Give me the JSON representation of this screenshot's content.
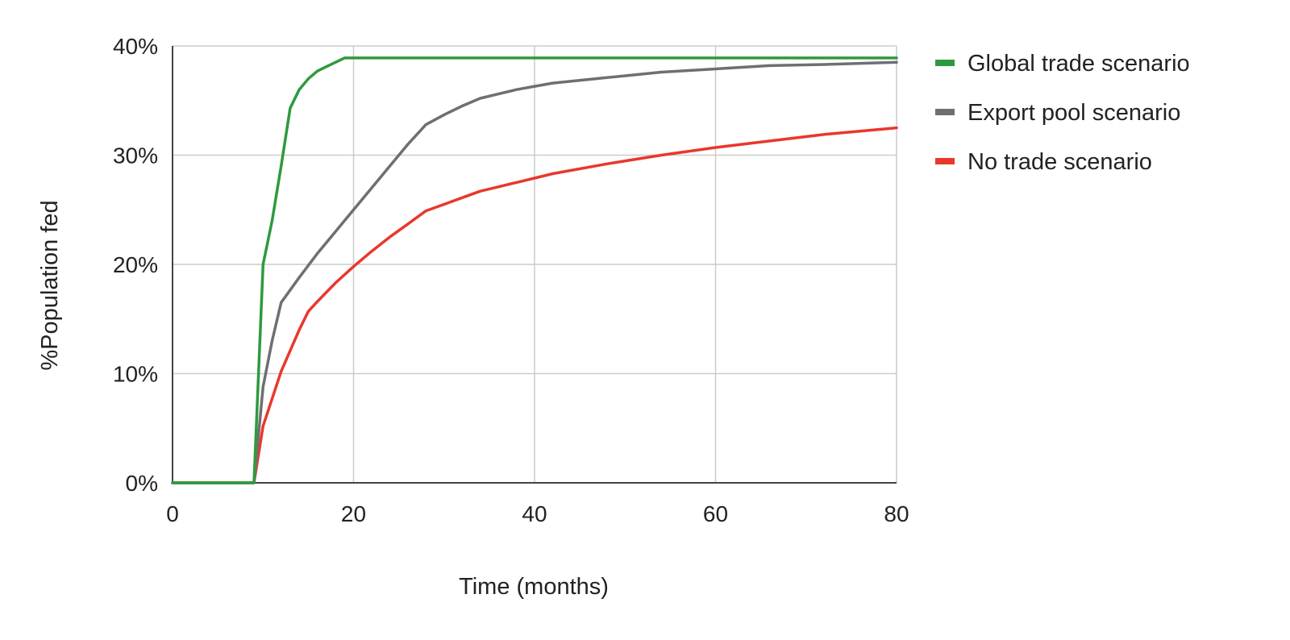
{
  "chart_data": {
    "type": "line",
    "title": "",
    "xlabel": "Time (months)",
    "ylabel": "%Population fed",
    "xlim": [
      0,
      80
    ],
    "ylim": [
      0,
      0.4
    ],
    "x_ticks": [
      {
        "value": 0,
        "label": "0"
      },
      {
        "value": 20,
        "label": "20"
      },
      {
        "value": 40,
        "label": "40"
      },
      {
        "value": 60,
        "label": "60"
      },
      {
        "value": 80,
        "label": "80"
      }
    ],
    "y_ticks": [
      {
        "value": 0,
        "label": "0%"
      },
      {
        "value": 0.1,
        "label": "10%"
      },
      {
        "value": 0.2,
        "label": "20%"
      },
      {
        "value": 0.3,
        "label": "30%"
      },
      {
        "value": 0.4,
        "label": "40%"
      }
    ],
    "grid": true,
    "legend_position": "right",
    "series": [
      {
        "name": "Global trade scenario",
        "color": "#2e9a3e",
        "points": [
          [
            0,
            0
          ],
          [
            9,
            0
          ],
          [
            10,
            0.2
          ],
          [
            11,
            0.24
          ],
          [
            12,
            0.29
          ],
          [
            13,
            0.343
          ],
          [
            14,
            0.36
          ],
          [
            15,
            0.37
          ],
          [
            16,
            0.377
          ],
          [
            17,
            0.381
          ],
          [
            18,
            0.385
          ],
          [
            19,
            0.389
          ],
          [
            20,
            0.389
          ],
          [
            40,
            0.389
          ],
          [
            60,
            0.389
          ],
          [
            80,
            0.389
          ]
        ]
      },
      {
        "name": "Export pool scenario",
        "color": "#6f6f73",
        "points": [
          [
            0,
            0
          ],
          [
            9,
            0
          ],
          [
            10,
            0.088
          ],
          [
            11,
            0.13
          ],
          [
            12,
            0.165
          ],
          [
            14,
            0.188
          ],
          [
            16,
            0.21
          ],
          [
            18,
            0.23
          ],
          [
            20,
            0.25
          ],
          [
            22,
            0.27
          ],
          [
            24,
            0.29
          ],
          [
            26,
            0.31
          ],
          [
            28,
            0.328
          ],
          [
            30,
            0.337
          ],
          [
            32,
            0.345
          ],
          [
            34,
            0.352
          ],
          [
            36,
            0.356
          ],
          [
            38,
            0.36
          ],
          [
            40,
            0.363
          ],
          [
            42,
            0.366
          ],
          [
            48,
            0.371
          ],
          [
            54,
            0.376
          ],
          [
            60,
            0.379
          ],
          [
            66,
            0.382
          ],
          [
            72,
            0.383
          ],
          [
            80,
            0.385
          ]
        ]
      },
      {
        "name": "No trade scenario",
        "color": "#e8382c",
        "points": [
          [
            0,
            0
          ],
          [
            9,
            0
          ],
          [
            10,
            0.052
          ],
          [
            12,
            0.102
          ],
          [
            14,
            0.14
          ],
          [
            15,
            0.157
          ],
          [
            16,
            0.166
          ],
          [
            18,
            0.183
          ],
          [
            20,
            0.198
          ],
          [
            22,
            0.212
          ],
          [
            24,
            0.225
          ],
          [
            26,
            0.237
          ],
          [
            28,
            0.249
          ],
          [
            30,
            0.255
          ],
          [
            32,
            0.261
          ],
          [
            34,
            0.267
          ],
          [
            36,
            0.271
          ],
          [
            38,
            0.275
          ],
          [
            40,
            0.279
          ],
          [
            42,
            0.283
          ],
          [
            48,
            0.292
          ],
          [
            54,
            0.3
          ],
          [
            60,
            0.307
          ],
          [
            66,
            0.313
          ],
          [
            72,
            0.319
          ],
          [
            80,
            0.325
          ]
        ]
      }
    ]
  }
}
